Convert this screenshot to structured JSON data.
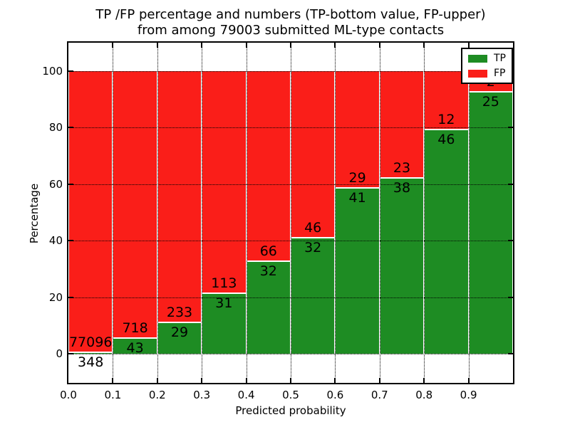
{
  "title": {
    "line1": "TP /FP percentage and numbers (TP-bottom value, FP-upper)",
    "line2": "from among 79003 submitted ML-type contacts"
  },
  "axes": {
    "xlabel": "Predicted probability",
    "ylabel": "Percentage",
    "xtick_labels": [
      "0.0",
      "0.1",
      "0.2",
      "0.3",
      "0.4",
      "0.5",
      "0.6",
      "0.7",
      "0.8",
      "0.9"
    ],
    "ytick_labels": [
      "0",
      "20",
      "40",
      "60",
      "80",
      "100"
    ],
    "ytick_values": [
      0,
      20,
      40,
      60,
      80,
      100
    ]
  },
  "legend": {
    "entries": [
      {
        "label": "TP",
        "color": "#1E8C23",
        "swatch": "tp-green-swatch"
      },
      {
        "label": "FP",
        "color": "#FA1E19",
        "swatch": "fp-red-swatch"
      }
    ],
    "position": "upper right"
  },
  "colors": {
    "tp": "#1E8C23",
    "fp": "#FA1E19",
    "grid": "#000000",
    "bar_edge": "#FFFFFF",
    "background": "#FFFFFF",
    "text": "#000000"
  },
  "chart_data": {
    "type": "bar",
    "stacked": true,
    "normalized_to": 100,
    "title": "TP /FP percentage and numbers (TP-bottom value, FP-upper) from among 79003 submitted ML-type contacts",
    "xlabel": "Predicted probability",
    "ylabel": "Percentage",
    "categories": [
      "0.0-0.1",
      "0.1-0.2",
      "0.2-0.3",
      "0.3-0.4",
      "0.4-0.5",
      "0.5-0.6",
      "0.6-0.7",
      "0.7-0.8",
      "0.8-0.9",
      "0.9-1.0"
    ],
    "x_bin_edges": [
      0.0,
      0.1,
      0.2,
      0.3,
      0.4,
      0.5,
      0.6,
      0.7,
      0.8,
      0.9,
      1.0
    ],
    "series": [
      {
        "name": "TP",
        "color": "#1E8C23",
        "counts": [
          348,
          43,
          29,
          31,
          32,
          32,
          41,
          38,
          46,
          25
        ]
      },
      {
        "name": "FP",
        "color": "#FA1E19",
        "counts": [
          77096,
          718,
          233,
          113,
          66,
          46,
          29,
          23,
          12,
          2
        ]
      }
    ],
    "tp_percent_of_bin": [
      0.45,
      5.65,
      11.07,
      21.53,
      32.65,
      41.03,
      58.57,
      62.3,
      79.31,
      92.59
    ],
    "total_contacts": 79003,
    "xlim": [
      0.0,
      1.0
    ],
    "ylim": [
      -10.8,
      110.2
    ],
    "grid": true,
    "grid_style": "dotted",
    "legend_position": "upper right"
  }
}
